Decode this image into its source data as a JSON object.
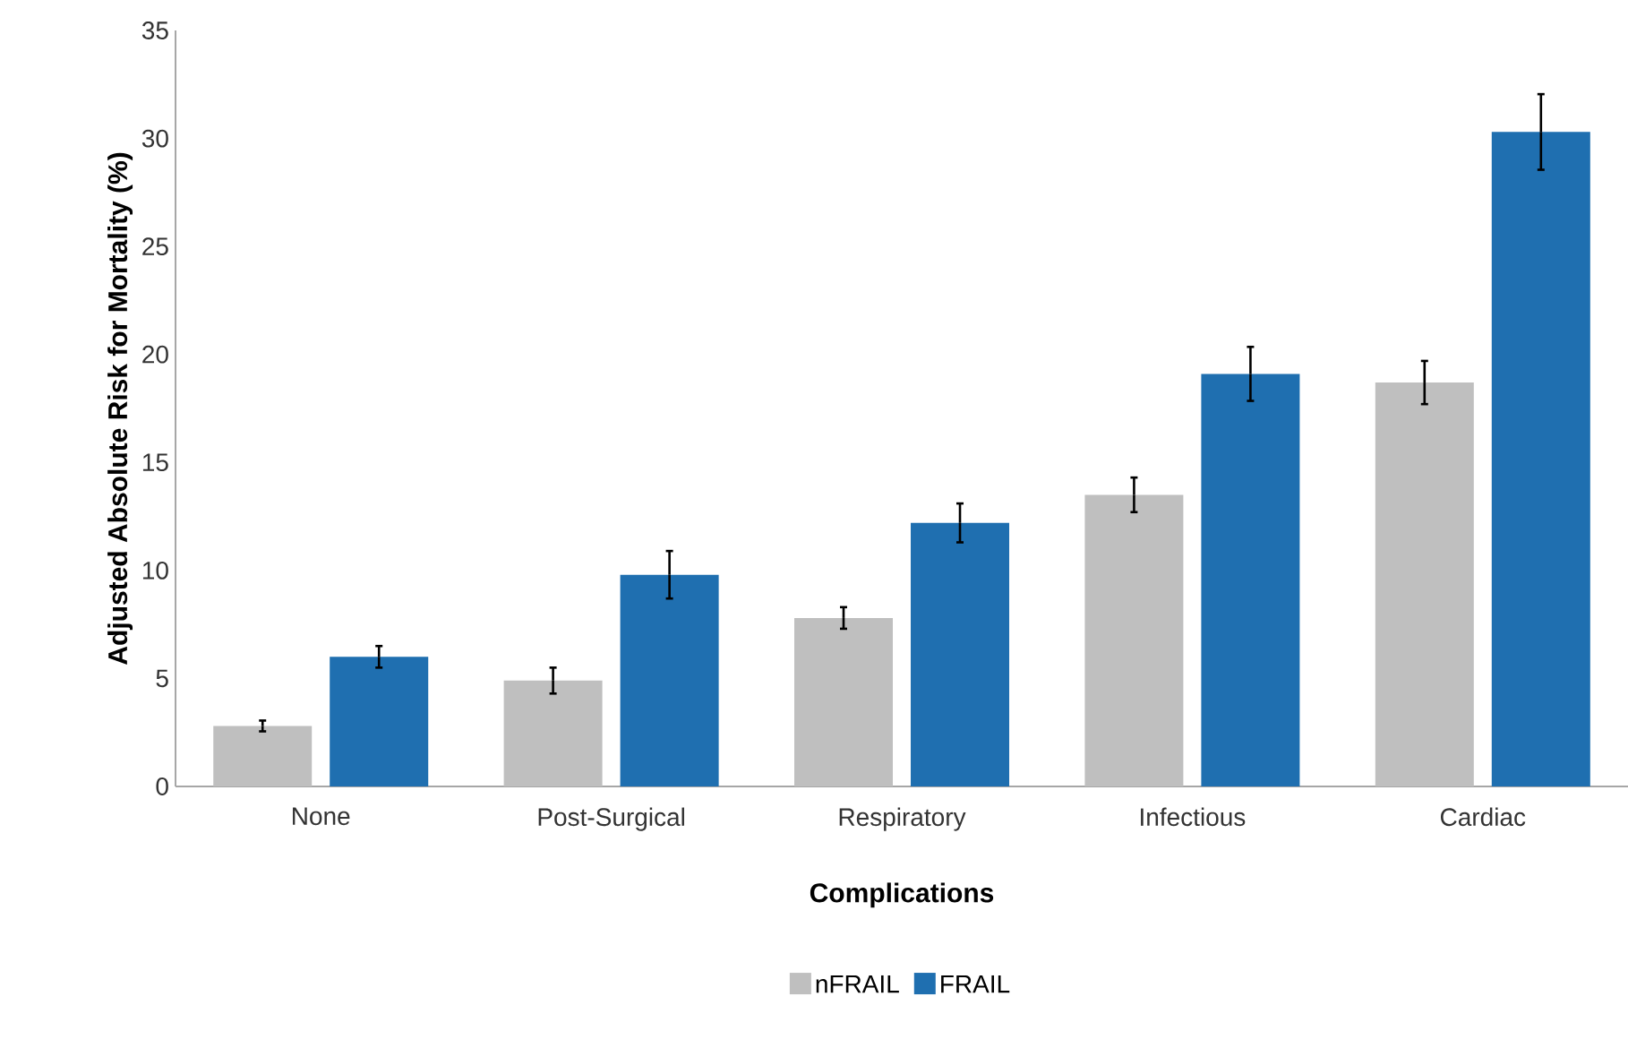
{
  "chart_data": {
    "type": "bar",
    "xlabel": "Complications",
    "ylabel": "Adjusted Absolute Risk for Mortality (%)",
    "categories": [
      "None",
      "Post-Surgical",
      "Respiratory",
      "Infectious",
      "Cardiac"
    ],
    "series": [
      {
        "name": "nFRAIL",
        "color": "#bfbfbf",
        "values": [
          2.8,
          4.9,
          7.8,
          13.5,
          18.7
        ],
        "errors": [
          0.25,
          0.6,
          0.5,
          0.8,
          1.0
        ]
      },
      {
        "name": "FRAIL",
        "color": "#1f6fb0",
        "values": [
          6.0,
          9.8,
          12.2,
          19.1,
          30.3
        ],
        "errors": [
          0.5,
          1.1,
          0.9,
          1.25,
          1.75
        ]
      }
    ],
    "ylim": [
      0,
      35
    ],
    "yticks": [
      0,
      5,
      10,
      15,
      20,
      25,
      30,
      35
    ],
    "grid": false,
    "legend": "bottom"
  }
}
